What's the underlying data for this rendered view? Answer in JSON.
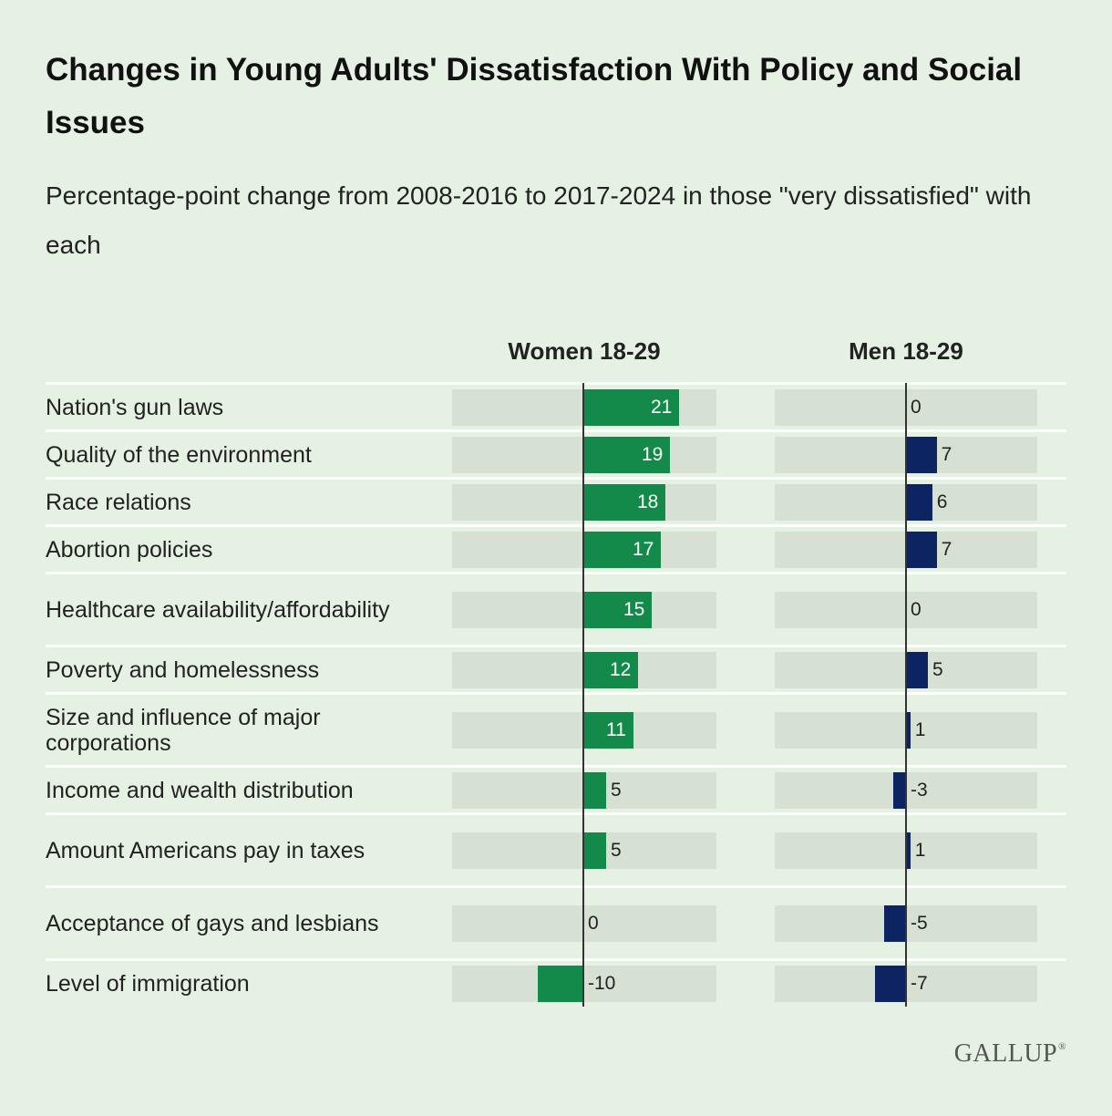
{
  "logo_text": "GALLUP",
  "colors": {
    "background": "#e5f1e2",
    "women_bar": "#138a4a",
    "men_bar": "#0c2461",
    "track": "#d6e0d3"
  },
  "chart_data": {
    "type": "bar",
    "orientation": "horizontal",
    "title": "Changes in Young Adults' Dissatisfaction With Policy and Social Issues",
    "subtitle": "Percentage-point change from 2008-2016 to 2017-2024 in those \"very dissatisfied\" with each",
    "categories": [
      "Nation's gun laws",
      "Quality of the environment",
      "Race relations",
      "Abortion policies",
      "Healthcare availability/affordability",
      "Poverty and homelessness",
      "Size and influence of major corporations",
      "Income and wealth distribution",
      "Amount Americans pay in taxes",
      "Acceptance of gays and lesbians",
      "Level of immigration"
    ],
    "series": [
      {
        "name": "Women 18-29",
        "values": [
          21,
          19,
          18,
          17,
          15,
          12,
          11,
          5,
          5,
          0,
          -10
        ]
      },
      {
        "name": "Men 18-29",
        "values": [
          0,
          7,
          6,
          7,
          0,
          5,
          1,
          -3,
          1,
          -5,
          -7
        ]
      }
    ],
    "grid": false,
    "legend": "none"
  }
}
